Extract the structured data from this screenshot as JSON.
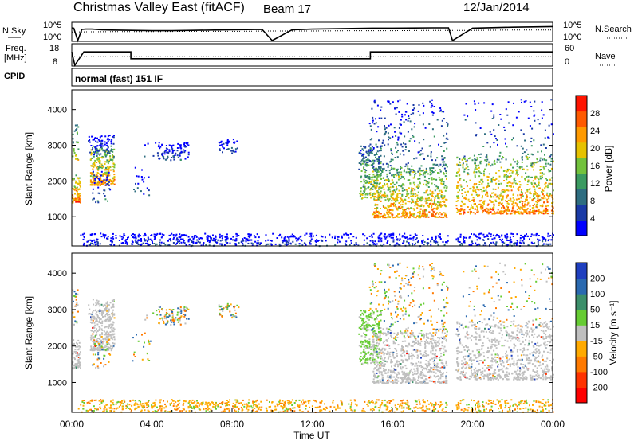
{
  "header": {
    "title": "Christmas Valley East (fitACF)",
    "beam": "Beam 17",
    "date": "12/Jan/2014"
  },
  "colors": {
    "power_scale": [
      "#0000ff",
      "#1a3aa6",
      "#2e6d80",
      "#3a9a60",
      "#72c23c",
      "#e6c200",
      "#ff9a00",
      "#ff5a00",
      "#ff1400"
    ],
    "velocity_scale": [
      "#1f3fbf",
      "#2a69b0",
      "#3c8f6a",
      "#66cc33",
      "#bfbfbf",
      "#ffaa00",
      "#ff7a00",
      "#ff3300",
      "#ff0000"
    ],
    "ground_scatter": "#bfbfbf"
  },
  "chart_data": [
    {
      "type": "line",
      "name": "sky-noise-panel",
      "left_label": [
        "N.Sky"
      ],
      "left_ticks": [
        "10^5",
        "10^0"
      ],
      "right_ticks": [
        "10^5",
        "10^0"
      ],
      "right_label": "N.Search",
      "x_range_hours": [
        0,
        24
      ],
      "series": [
        {
          "style": "solid",
          "x": [
            0,
            0.1,
            0.3,
            0.5,
            0.7,
            1,
            1.5,
            2,
            3,
            4,
            5,
            6,
            8,
            9.5,
            10,
            11,
            12,
            14,
            15,
            16,
            18,
            18.8,
            19,
            20,
            22,
            24
          ],
          "y": [
            4,
            3.9,
            0,
            3.5,
            3.6,
            3.6,
            3.4,
            3.3,
            3.2,
            3.1,
            3.1,
            3.2,
            3.4,
            3.5,
            0,
            3.4,
            3.6,
            3.8,
            3.9,
            3.9,
            4.0,
            4.0,
            0,
            3.9,
            4.2,
            4.4
          ]
        },
        {
          "style": "dotted",
          "x": [
            0,
            2,
            4,
            6,
            8,
            10,
            12,
            14,
            16,
            18,
            20,
            22,
            24
          ],
          "y": [
            2.7,
            2.8,
            2.8,
            2.9,
            2.9,
            3.0,
            3.0,
            3.1,
            3.1,
            3.2,
            3.2,
            3.3,
            3.3
          ]
        }
      ]
    },
    {
      "type": "line",
      "name": "frequency-panel",
      "left_label": [
        "Freq.",
        "[MHz]"
      ],
      "left_ticks": [
        "18",
        "8"
      ],
      "right_ticks": [
        "60",
        "0"
      ],
      "right_label": "Nave",
      "x_range_hours": [
        0,
        24
      ],
      "y_range": [
        8,
        18
      ],
      "series": [
        {
          "style": "solid",
          "x": [
            0,
            0.15,
            0.6,
            0.6,
            2.95,
            2.95,
            9.5,
            10,
            11,
            14.9,
            14.9,
            18.7,
            19.1,
            24
          ],
          "y": [
            15,
            8,
            15,
            15,
            15,
            11.4,
            11.4,
            11.4,
            11.4,
            11.4,
            15,
            15,
            15,
            15
          ]
        },
        {
          "style": "dotted",
          "x": [
            0,
            24
          ],
          "y": [
            12.5,
            12.5
          ]
        }
      ]
    },
    {
      "type": "heatmap",
      "name": "power-panel",
      "cpid": "CPID",
      "mode_label": "normal (fast) 151 IF",
      "ylabel": "Slant Range [km]",
      "yticks": [
        "4000",
        "3000",
        "2000",
        "1000"
      ],
      "ylim_km": [
        180,
        4550
      ],
      "colorbar_label": "Power [dB]",
      "colorbar_ticks": [
        "28",
        "24",
        "20",
        "16",
        "12",
        "8",
        "4"
      ],
      "colorbar_range": [
        0,
        32
      ]
    },
    {
      "type": "heatmap",
      "name": "velocity-panel",
      "ylabel": "Slant Range [km]",
      "yticks": [
        "4000",
        "3000",
        "2000",
        "1000"
      ],
      "ylim_km": [
        180,
        4550
      ],
      "colorbar_label": "Velocity [m s⁻¹]",
      "colorbar_ticks": [
        "200",
        "100",
        "50",
        "15",
        "-15",
        "-50",
        "-100",
        "-200"
      ],
      "xlabel": "Time UT",
      "xticks": [
        "00:00",
        "04:00",
        "08:00",
        "12:00",
        "16:00",
        "20:00",
        "00:00"
      ]
    }
  ]
}
